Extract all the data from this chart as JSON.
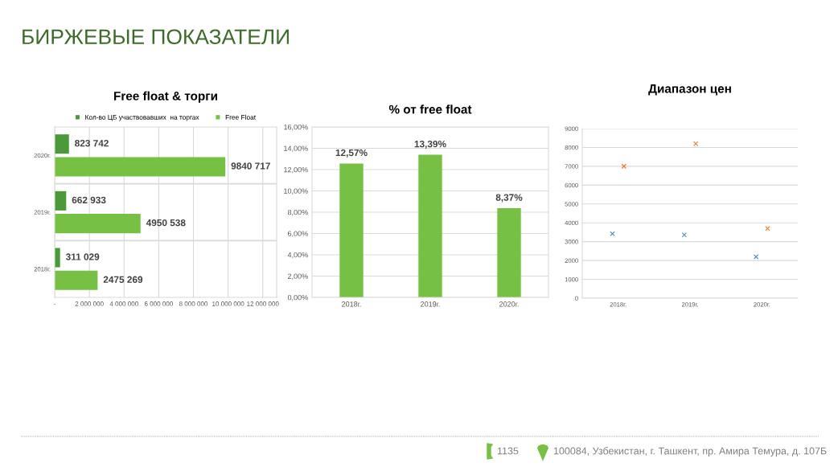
{
  "chart_data": [
    {
      "type": "other",
      "title": "БИРЖЕВЫЕ ПОКАЗАТЕЛИ",
      "annotations": [
        "1135",
        "100084, Узбекистан, г. Ташкент, пр. Амира Темура, д. 107Б"
      ]
    },
    {
      "type": "bar",
      "orientation": "horizontal",
      "title": "Free float & торги",
      "categories": [
        "2020г.",
        "2019г.",
        "2018г."
      ],
      "series": [
        {
          "name": "Кол-во ЦБ участвовавших  на торгах",
          "color": "#4a9a3a",
          "values": [
            823742,
            662933,
            311029
          ],
          "value_labels": [
            "823 742",
            "662 933",
            "311 029"
          ]
        },
        {
          "name": "Free Float",
          "color": "#76c043",
          "values": [
            9840717,
            4950538,
            2475269
          ],
          "value_labels": [
            "9840 717",
            "4950 538",
            "2475 269"
          ]
        }
      ],
      "xlim": [
        0,
        12800000
      ],
      "xticks": [
        {
          "value": 0,
          "label": "-"
        },
        {
          "value": 2000000,
          "label": "2 000 000"
        },
        {
          "value": 4000000,
          "label": "4 000 000"
        },
        {
          "value": 6000000,
          "label": "6 000 000"
        },
        {
          "value": 8000000,
          "label": "8 000 000"
        },
        {
          "value": 10000000,
          "label": "10 000 000"
        },
        {
          "value": 12000000,
          "label": "12 000 000"
        }
      ],
      "grid": "x",
      "legend": "top"
    },
    {
      "type": "bar",
      "title": "% от free float",
      "categories": [
        "2018г.",
        "2019г.",
        "2020г."
      ],
      "values": [
        12.57,
        13.39,
        8.37
      ],
      "color": "#76c043",
      "value_labels": [
        "12,57%",
        "13,39%",
        "8,37%"
      ],
      "ylim": [
        0,
        16
      ],
      "yticks": [
        {
          "value": 0,
          "label": "0,00%"
        },
        {
          "value": 2,
          "label": "2,00%"
        },
        {
          "value": 4,
          "label": "4,00%"
        },
        {
          "value": 6,
          "label": "6,00%"
        },
        {
          "value": 8,
          "label": "8,00%"
        },
        {
          "value": 10,
          "label": "10,00%"
        },
        {
          "value": 12,
          "label": "12,00%"
        },
        {
          "value": 14,
          "label": "14,00%"
        },
        {
          "value": 16,
          "label": "16,00%"
        }
      ],
      "grid": "y"
    },
    {
      "type": "scatter",
      "title": "Диапазон цен",
      "categories": [
        "2018г.",
        "2019г.",
        "2020г."
      ],
      "marker": "cross",
      "series": [
        {
          "color": "#5b8fc7",
          "values": [
            3420,
            3360,
            2200
          ]
        },
        {
          "color": "#ed7d31",
          "values": [
            7000,
            8200,
            3700
          ]
        }
      ],
      "ylim": [
        0,
        9000
      ],
      "yticks": [
        0,
        1000,
        2000,
        3000,
        4000,
        5000,
        6000,
        7000,
        8000,
        9000
      ],
      "grid": "y"
    }
  ]
}
